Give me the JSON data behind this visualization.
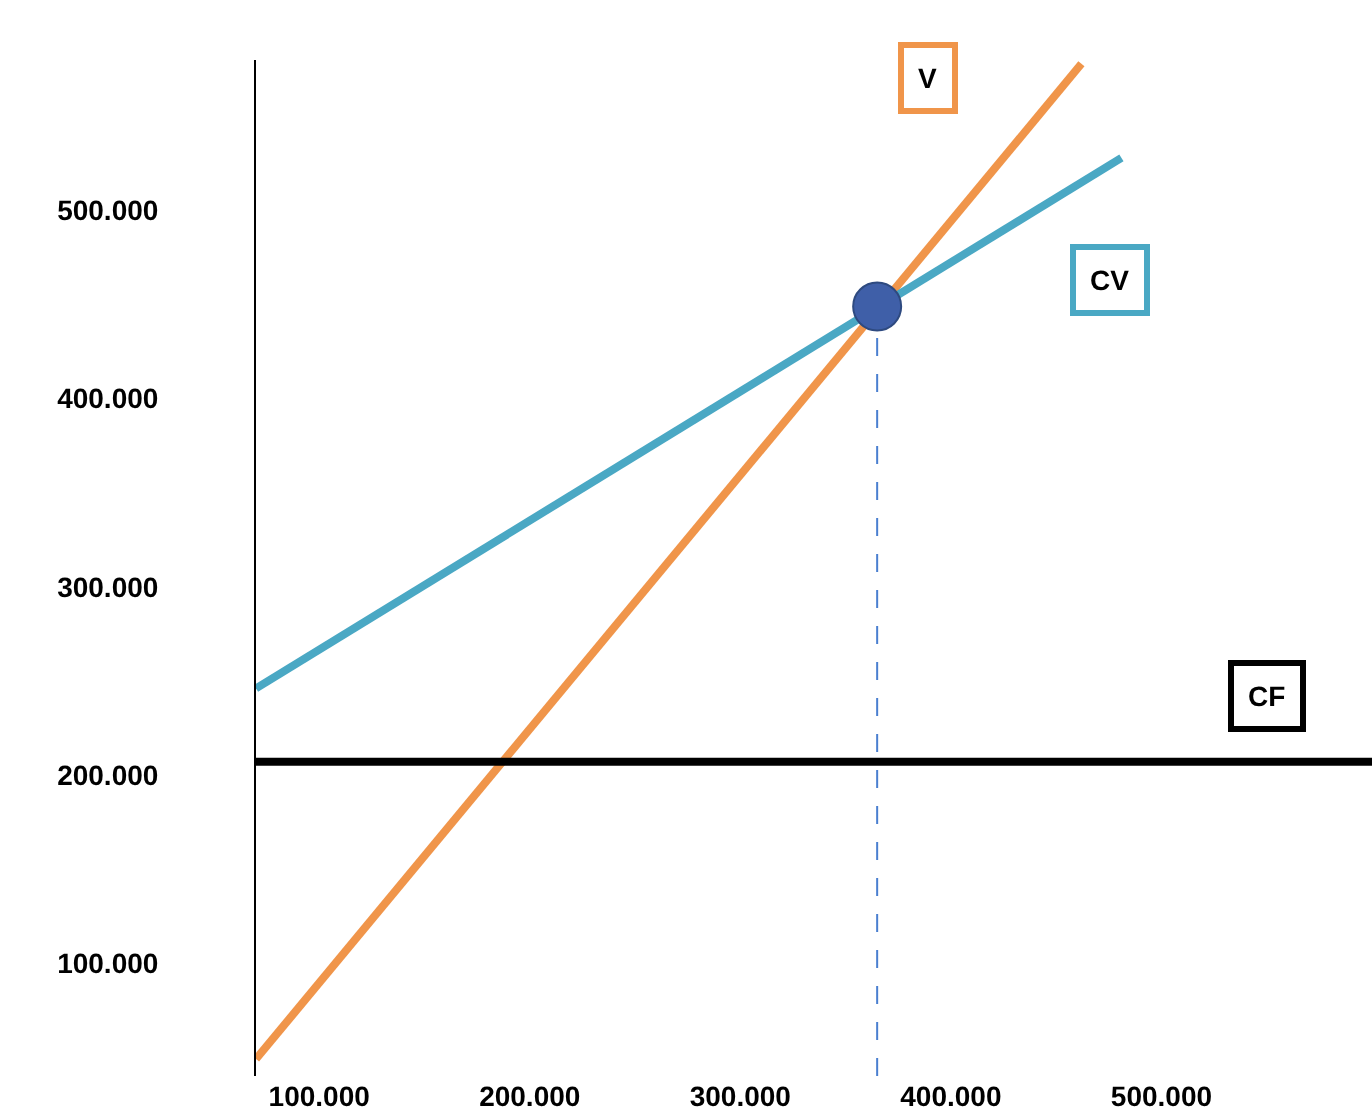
{
  "chart_data": {
    "type": "line",
    "xlim": [
      70000,
      600000
    ],
    "ylim": [
      40000,
      580000
    ],
    "xticks": [
      {
        "value": 100000,
        "label": "100.000"
      },
      {
        "value": 200000,
        "label": "200.000"
      },
      {
        "value": 300000,
        "label": "300.000"
      },
      {
        "value": 400000,
        "label": "400.000"
      },
      {
        "value": 500000,
        "label": "500.000"
      }
    ],
    "yticks": [
      {
        "value": 100000,
        "label": "100.000"
      },
      {
        "value": 200000,
        "label": "200.000"
      },
      {
        "value": 300000,
        "label": "300.000"
      },
      {
        "value": 400000,
        "label": "400.000"
      },
      {
        "value": 500000,
        "label": "500.000"
      }
    ],
    "series": [
      {
        "color": "#f0954a",
        "x": [
          70000,
          462000
        ],
        "values": [
          49000,
          578000
        ]
      },
      {
        "color": "#4aa8c4",
        "x": [
          70000,
          481000
        ],
        "values": [
          246000,
          528000
        ]
      },
      {
        "color": "#000000",
        "x": [
          70000,
          600000
        ],
        "values": [
          207000,
          207000
        ]
      },
      {
        "type": "line",
        "line_style": "dashed",
        "color": "#4a7fd0",
        "x": [
          365000,
          365000
        ],
        "values": [
          40000,
          449000
        ]
      },
      {
        "type": "scatter",
        "marker": "circle",
        "color": "#3f5fa8",
        "x": [
          365000
        ],
        "values": [
          449000
        ]
      }
    ],
    "annotations": [
      {
        "text": "V",
        "x": 389000,
        "y": 570000
      },
      {
        "text": "CV",
        "x": 476000,
        "y": 463000
      },
      {
        "text": "CF",
        "x": 550000,
        "y": 242000
      }
    ]
  }
}
